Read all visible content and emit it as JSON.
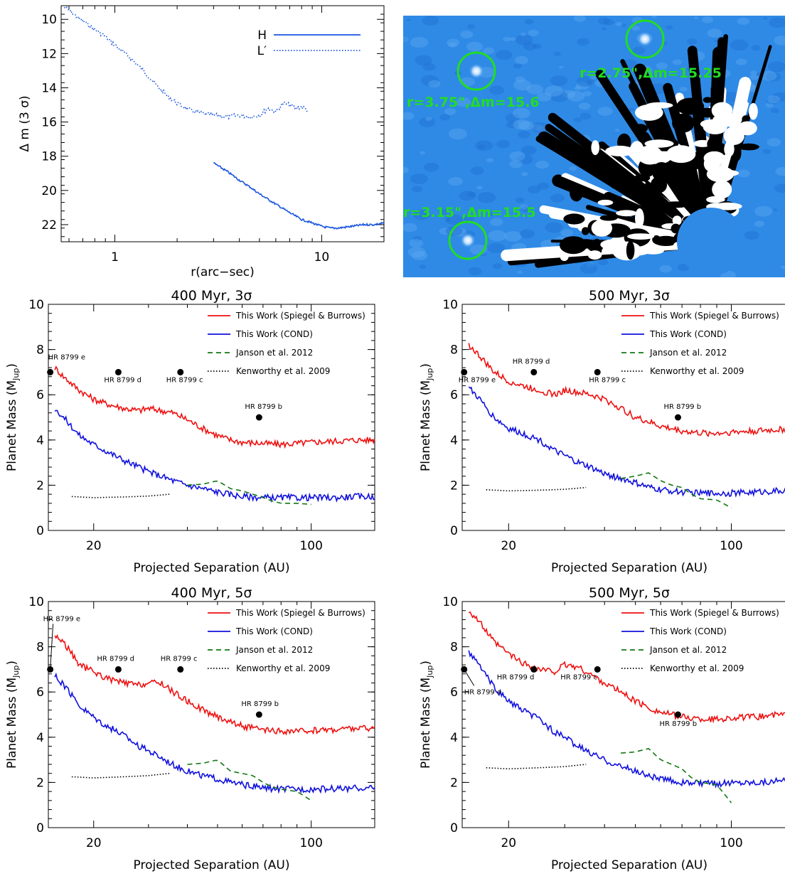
{
  "chart_data": [
    {
      "id": "contrast",
      "type": "line",
      "xscale": "log",
      "xlabel": "r(arc−sec)",
      "ylabel": "Δ m (3 σ)",
      "xlim": [
        0.55,
        20
      ],
      "ylim": [
        23,
        9.2
      ],
      "yticks": [
        10,
        12,
        14,
        16,
        18,
        20,
        22
      ],
      "xticks": [
        1,
        10
      ],
      "xtick_labels": [
        "1",
        "10"
      ],
      "legend_position": "top-right",
      "series": [
        {
          "name": "L′",
          "style": "dotted",
          "color": "#1a55e0",
          "x": [
            0.57,
            0.62,
            0.66,
            0.72,
            0.8,
            0.9,
            1.0,
            1.2,
            1.4,
            1.6,
            1.8,
            2.0,
            2.3,
            2.6,
            3.0,
            3.5,
            4.0,
            4.5,
            5.0,
            5.5,
            6.0,
            6.5,
            7.0,
            7.5,
            8.0,
            8.5
          ],
          "y": [
            9.3,
            9.6,
            9.9,
            10.2,
            10.6,
            11.0,
            11.5,
            12.3,
            13.1,
            13.9,
            14.5,
            14.9,
            15.3,
            15.5,
            15.6,
            15.7,
            15.6,
            15.7,
            15.6,
            15.2,
            15.4,
            14.9,
            15.0,
            15.2,
            15.1,
            15.3
          ]
        },
        {
          "name": "H",
          "style": "solid",
          "color": "#1a55e0",
          "x": [
            3.0,
            3.5,
            4.0,
            4.5,
            5.0,
            6.0,
            7.0,
            8.0,
            9.0,
            10.0,
            11.0,
            12.0,
            14.0,
            16.0,
            18.0,
            20.0
          ],
          "y": [
            18.4,
            18.9,
            19.4,
            19.8,
            20.2,
            20.8,
            21.3,
            21.7,
            21.9,
            22.1,
            22.2,
            22.2,
            22.1,
            22.0,
            22.0,
            21.9
          ]
        }
      ]
    },
    {
      "id": "m400_3",
      "type": "line",
      "title": "400 Myr, 3σ",
      "xscale": "log",
      "xlabel": "Projected Separation (AU)",
      "ylabel": "Planet Mass (M",
      "ylabel_sub": "Jup",
      "ylabel_close": ")",
      "xlim": [
        14.3,
        160
      ],
      "ylim": [
        0,
        10
      ],
      "yticks": [
        0,
        2,
        4,
        6,
        8,
        10
      ],
      "xticks": [
        20,
        100
      ],
      "legend_position": "top-right",
      "series": [
        {
          "name": "This Work (Spiegel & Burrows)",
          "style": "solid",
          "color": "#ee1111",
          "x": [
            15,
            16,
            18,
            20,
            22,
            25,
            28,
            30,
            33,
            36,
            40,
            45,
            50,
            55,
            60,
            70,
            80,
            90,
            100,
            120,
            140,
            160
          ],
          "y": [
            7.2,
            6.8,
            6.2,
            5.8,
            5.6,
            5.4,
            5.3,
            5.4,
            5.3,
            5.2,
            4.9,
            4.5,
            4.2,
            4.0,
            3.9,
            3.85,
            3.8,
            3.85,
            3.9,
            3.95,
            4.0,
            4.0
          ]
        },
        {
          "name": "This Work (COND)",
          "style": "solid",
          "color": "#1111dd",
          "x": [
            15,
            16,
            18,
            20,
            22,
            25,
            28,
            30,
            33,
            36,
            40,
            45,
            50,
            55,
            60,
            70,
            80,
            90,
            100,
            120,
            140,
            160
          ],
          "y": [
            5.4,
            5.0,
            4.2,
            3.8,
            3.5,
            3.1,
            2.8,
            2.6,
            2.4,
            2.2,
            2.0,
            1.85,
            1.7,
            1.6,
            1.5,
            1.45,
            1.45,
            1.45,
            1.45,
            1.45,
            1.5,
            1.5
          ]
        },
        {
          "name": "Janson et al. 2012",
          "style": "dashed",
          "color": "#117711",
          "x": [
            40,
            45,
            50,
            55,
            60,
            65,
            70,
            75,
            80,
            90,
            100
          ],
          "y": [
            2.0,
            2.05,
            2.2,
            1.85,
            1.75,
            1.6,
            1.45,
            1.3,
            1.2,
            1.2,
            1.15
          ]
        },
        {
          "name": "Kenworthy et al. 2009",
          "style": "dotted",
          "color": "#000000",
          "x": [
            17,
            20,
            25,
            30,
            35
          ],
          "y": [
            1.5,
            1.45,
            1.48,
            1.52,
            1.6
          ]
        }
      ],
      "points": [
        {
          "label": "HR 8799 e",
          "x": 14.5,
          "y": 7.0
        },
        {
          "label": "HR 8799 d",
          "x": 24,
          "y": 7.0
        },
        {
          "label": "HR 8799 c",
          "x": 38,
          "y": 7.0
        },
        {
          "label": "HR 8799 b",
          "x": 68,
          "y": 5.0
        }
      ]
    },
    {
      "id": "m500_3",
      "type": "line",
      "title": "500 Myr, 3σ",
      "xscale": "log",
      "xlabel": "Projected Separation (AU)",
      "ylabel": "Planet Mass (M",
      "ylabel_sub": "Jup",
      "ylabel_close": ")",
      "xlim": [
        14.3,
        160
      ],
      "ylim": [
        0,
        10
      ],
      "yticks": [
        0,
        2,
        4,
        6,
        8,
        10
      ],
      "xticks": [
        20,
        100
      ],
      "legend_position": "top-right",
      "series": [
        {
          "name": "This Work (Spiegel & Burrows)",
          "style": "solid",
          "color": "#ee1111",
          "x": [
            15,
            16,
            18,
            20,
            22,
            25,
            28,
            30,
            33,
            36,
            40,
            45,
            50,
            55,
            60,
            70,
            80,
            90,
            100,
            120,
            140,
            160
          ],
          "y": [
            8.2,
            7.8,
            7.0,
            6.6,
            6.4,
            6.2,
            6.0,
            6.2,
            6.1,
            6.0,
            5.8,
            5.4,
            5.0,
            4.8,
            4.6,
            4.4,
            4.3,
            4.3,
            4.35,
            4.4,
            4.45,
            4.5
          ]
        },
        {
          "name": "This Work (COND)",
          "style": "solid",
          "color": "#1111dd",
          "x": [
            15,
            16,
            18,
            20,
            22,
            25,
            28,
            30,
            33,
            36,
            40,
            45,
            50,
            55,
            60,
            70,
            80,
            90,
            100,
            120,
            140,
            160
          ],
          "y": [
            6.3,
            5.9,
            5.0,
            4.5,
            4.3,
            4.0,
            3.5,
            3.3,
            3.0,
            2.8,
            2.5,
            2.3,
            2.1,
            1.9,
            1.8,
            1.7,
            1.65,
            1.65,
            1.65,
            1.7,
            1.75,
            1.75
          ]
        },
        {
          "name": "Janson et al. 2012",
          "style": "dashed",
          "color": "#117711",
          "x": [
            45,
            50,
            55,
            60,
            65,
            70,
            75,
            80,
            90,
            100
          ],
          "y": [
            2.3,
            2.4,
            2.55,
            2.2,
            2.0,
            1.9,
            1.6,
            1.4,
            1.35,
            1.0
          ]
        },
        {
          "name": "Kenworthy et al. 2009",
          "style": "dotted",
          "color": "#000000",
          "x": [
            17,
            20,
            25,
            30,
            35
          ],
          "y": [
            1.8,
            1.75,
            1.78,
            1.82,
            1.9
          ]
        }
      ],
      "points": [
        {
          "label": "HR 8799 e",
          "x": 14.5,
          "y": 7.0
        },
        {
          "label": "HR 8799 d",
          "x": 24,
          "y": 7.0
        },
        {
          "label": "HR 8799 c",
          "x": 38,
          "y": 7.0
        },
        {
          "label": "HR 8799 b",
          "x": 68,
          "y": 5.0
        }
      ]
    },
    {
      "id": "m400_5",
      "type": "line",
      "title": "400 Myr, 5σ",
      "xscale": "log",
      "xlabel": "Projected Separation (AU)",
      "ylabel": "Planet Mass (M",
      "ylabel_sub": "Jup",
      "ylabel_close": ")",
      "xlim": [
        14.3,
        160
      ],
      "ylim": [
        0,
        10
      ],
      "yticks": [
        0,
        2,
        4,
        6,
        8,
        10
      ],
      "xticks": [
        20,
        100
      ],
      "legend_position": "top-right",
      "series": [
        {
          "name": "This Work (Spiegel & Burrows)",
          "style": "solid",
          "color": "#ee1111",
          "x": [
            15,
            16,
            18,
            20,
            22,
            25,
            28,
            30,
            33,
            36,
            40,
            45,
            50,
            55,
            60,
            70,
            80,
            90,
            100,
            120,
            140,
            160
          ],
          "y": [
            8.5,
            8.2,
            7.2,
            6.9,
            6.6,
            6.4,
            6.3,
            6.4,
            6.4,
            6.0,
            5.6,
            5.2,
            4.9,
            4.7,
            4.5,
            4.3,
            4.25,
            4.25,
            4.3,
            4.35,
            4.4,
            4.4
          ]
        },
        {
          "name": "This Work (COND)",
          "style": "solid",
          "color": "#1111dd",
          "x": [
            15,
            16,
            18,
            20,
            22,
            25,
            28,
            30,
            33,
            36,
            40,
            45,
            50,
            55,
            60,
            70,
            80,
            90,
            100,
            120,
            140,
            160
          ],
          "y": [
            6.7,
            6.3,
            5.4,
            4.9,
            4.5,
            4.1,
            3.6,
            3.4,
            3.1,
            2.8,
            2.5,
            2.3,
            2.15,
            2.0,
            1.9,
            1.75,
            1.7,
            1.7,
            1.7,
            1.72,
            1.75,
            1.75
          ]
        },
        {
          "name": "Janson et al. 2012",
          "style": "dashed",
          "color": "#117711",
          "x": [
            40,
            45,
            50,
            55,
            60,
            65,
            70,
            75,
            80,
            90,
            100
          ],
          "y": [
            2.8,
            2.85,
            3.0,
            2.5,
            2.4,
            2.3,
            2.0,
            1.8,
            1.7,
            1.6,
            1.2
          ]
        },
        {
          "name": "Kenworthy et al. 2009",
          "style": "dotted",
          "color": "#000000",
          "x": [
            17,
            20,
            25,
            30,
            35
          ],
          "y": [
            2.25,
            2.2,
            2.25,
            2.3,
            2.4
          ]
        }
      ],
      "points": [
        {
          "label": "HR 8799 e",
          "x": 14.5,
          "y": 7.0
        },
        {
          "label": "HR 8799 d",
          "x": 24,
          "y": 7.0
        },
        {
          "label": "HR 8799 c",
          "x": 38,
          "y": 7.0
        },
        {
          "label": "HR 8799 b",
          "x": 68,
          "y": 5.0
        }
      ]
    },
    {
      "id": "m500_5",
      "type": "line",
      "title": "500 Myr, 5σ",
      "xscale": "log",
      "xlabel": "Projected Separation (AU)",
      "ylabel": "Planet Mass (M",
      "ylabel_sub": "Jup",
      "ylabel_close": ")",
      "xlim": [
        14.3,
        160
      ],
      "ylim": [
        0,
        10
      ],
      "yticks": [
        0,
        2,
        4,
        6,
        8,
        10
      ],
      "xticks": [
        20,
        100
      ],
      "legend_position": "top-right",
      "series": [
        {
          "name": "This Work (Spiegel & Burrows)",
          "style": "solid",
          "color": "#ee1111",
          "x": [
            15,
            16,
            18,
            20,
            22,
            25,
            28,
            30,
            33,
            36,
            40,
            45,
            50,
            55,
            60,
            70,
            80,
            90,
            100,
            120,
            140,
            160
          ],
          "y": [
            9.6,
            9.2,
            8.2,
            7.7,
            7.3,
            7.0,
            6.9,
            7.2,
            7.1,
            6.8,
            6.4,
            6.0,
            5.6,
            5.3,
            5.1,
            4.9,
            4.8,
            4.8,
            4.85,
            4.9,
            5.0,
            5.0
          ]
        },
        {
          "name": "This Work (COND)",
          "style": "solid",
          "color": "#1111dd",
          "x": [
            15,
            16,
            18,
            20,
            22,
            25,
            28,
            30,
            33,
            36,
            40,
            45,
            50,
            55,
            60,
            70,
            80,
            90,
            100,
            120,
            140,
            160
          ],
          "y": [
            7.7,
            7.3,
            6.2,
            5.6,
            5.2,
            4.8,
            4.2,
            4.0,
            3.6,
            3.3,
            3.0,
            2.7,
            2.5,
            2.3,
            2.15,
            2.0,
            1.95,
            1.95,
            2.0,
            2.02,
            2.05,
            2.1
          ]
        },
        {
          "name": "Janson et al. 2012",
          "style": "dashed",
          "color": "#117711",
          "x": [
            45,
            50,
            55,
            60,
            65,
            70,
            75,
            80,
            90,
            100
          ],
          "y": [
            3.3,
            3.35,
            3.5,
            3.0,
            2.8,
            2.6,
            2.2,
            2.0,
            1.9,
            1.1
          ]
        },
        {
          "name": "Kenworthy et al. 2009",
          "style": "dotted",
          "color": "#000000",
          "x": [
            17,
            20,
            25,
            30,
            35
          ],
          "y": [
            2.65,
            2.6,
            2.65,
            2.7,
            2.8
          ]
        }
      ],
      "points": [
        {
          "label": "HR 8799 e",
          "x": 14.5,
          "y": 7.0
        },
        {
          "label": "HR 8799 d",
          "x": 24,
          "y": 7.0
        },
        {
          "label": "HR 8799 c",
          "x": 38,
          "y": 7.0
        },
        {
          "label": "HR 8799 b",
          "x": 68,
          "y": 5.0
        }
      ]
    }
  ],
  "image_panel": {
    "background": "#2f8ae6",
    "mask_color": "#2f8ae6",
    "annotation_color": "#22dd22",
    "annotations": [
      {
        "text": "r=2.75\",Δm=15.25"
      },
      {
        "text": "r=3.75\",Δm=15.6"
      },
      {
        "text": "r=3.15\",Δm=15.5"
      }
    ]
  }
}
